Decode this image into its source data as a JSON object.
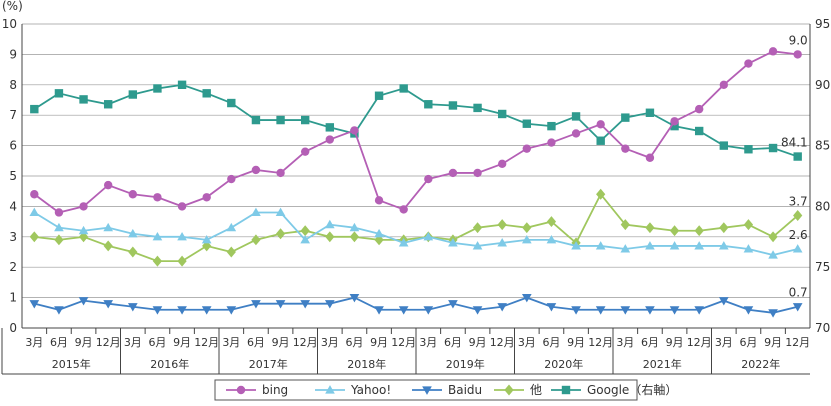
{
  "chart_data": {
    "type": "line",
    "left_unit_label": "(%)",
    "left_axis": {
      "min": 0,
      "max": 10,
      "ticks": [
        "0",
        "1",
        "2",
        "3",
        "4",
        "5",
        "6",
        "7",
        "8",
        "9",
        "10"
      ]
    },
    "right_axis": {
      "min": 70,
      "max": 95,
      "ticks": [
        "70",
        "75",
        "80",
        "85",
        "90",
        "95"
      ]
    },
    "x_month_labels": [
      "3月",
      "6月",
      "9月",
      "12月",
      "3月",
      "6月",
      "9月",
      "12月",
      "3月",
      "6月",
      "9月",
      "12月",
      "3月",
      "6月",
      "9月",
      "12月",
      "3月",
      "6月",
      "9月",
      "12月",
      "3月",
      "6月",
      "9月",
      "12月",
      "3月",
      "6月",
      "9月",
      "12月",
      "3月",
      "6月",
      "9月",
      "12月"
    ],
    "x_year_labels": [
      "2015年",
      "2016年",
      "2017年",
      "2018年",
      "2019年",
      "2020年",
      "2021年",
      "2022年"
    ],
    "series": [
      {
        "name": "bing",
        "axis": "left",
        "color": "#b45fb5",
        "marker": "circle",
        "values": [
          4.4,
          3.8,
          4.0,
          4.7,
          4.4,
          4.3,
          4.0,
          4.3,
          4.9,
          5.2,
          5.1,
          5.8,
          6.2,
          6.5,
          4.2,
          3.9,
          4.9,
          5.1,
          5.1,
          5.4,
          5.9,
          6.1,
          6.4,
          6.7,
          5.9,
          5.6,
          6.8,
          7.2,
          8.0,
          8.7,
          9.1,
          9.0
        ],
        "end_label": "9.0"
      },
      {
        "name": "Yahoo!",
        "axis": "left",
        "color": "#7ecae7",
        "marker": "triangle-up",
        "values": [
          3.8,
          3.3,
          3.2,
          3.3,
          3.1,
          3.0,
          3.0,
          2.9,
          3.3,
          3.8,
          3.8,
          2.9,
          3.4,
          3.3,
          3.1,
          2.8,
          3.0,
          2.8,
          2.7,
          2.8,
          2.9,
          2.9,
          2.7,
          2.7,
          2.6,
          2.7,
          2.7,
          2.7,
          2.7,
          2.6,
          2.4,
          2.6
        ],
        "end_label": "2.6"
      },
      {
        "name": "Baidu",
        "axis": "left",
        "color": "#3f7fc4",
        "marker": "triangle-down",
        "values": [
          0.8,
          0.6,
          0.9,
          0.8,
          0.7,
          0.6,
          0.6,
          0.6,
          0.6,
          0.8,
          0.8,
          0.8,
          0.8,
          1.0,
          0.6,
          0.6,
          0.6,
          0.8,
          0.6,
          0.7,
          1.0,
          0.7,
          0.6,
          0.6,
          0.6,
          0.6,
          0.6,
          0.6,
          0.9,
          0.6,
          0.5,
          0.7
        ],
        "end_label": "0.7"
      },
      {
        "name": "他",
        "axis": "left",
        "color": "#a0c75e",
        "marker": "diamond",
        "values": [
          3.0,
          2.9,
          3.0,
          2.7,
          2.5,
          2.2,
          2.2,
          2.7,
          2.5,
          2.9,
          3.1,
          3.2,
          3.0,
          3.0,
          2.9,
          2.9,
          3.0,
          2.9,
          3.3,
          3.4,
          3.3,
          3.5,
          2.8,
          4.4,
          3.4,
          3.3,
          3.2,
          3.2,
          3.3,
          3.4,
          3.0,
          3.7
        ],
        "end_label": "3.7"
      },
      {
        "name": "Google（右軸）",
        "axis": "right",
        "color": "#2e9a8e",
        "marker": "square",
        "values": [
          88.0,
          89.3,
          88.8,
          88.4,
          89.2,
          89.7,
          90.0,
          89.3,
          88.5,
          87.1,
          87.1,
          87.1,
          86.5,
          86.0,
          89.1,
          89.7,
          88.4,
          88.3,
          88.1,
          87.6,
          86.8,
          86.6,
          87.4,
          85.4,
          87.3,
          87.7,
          86.6,
          86.2,
          85.0,
          84.7,
          84.8,
          84.1
        ],
        "end_label": "84.1"
      }
    ]
  }
}
